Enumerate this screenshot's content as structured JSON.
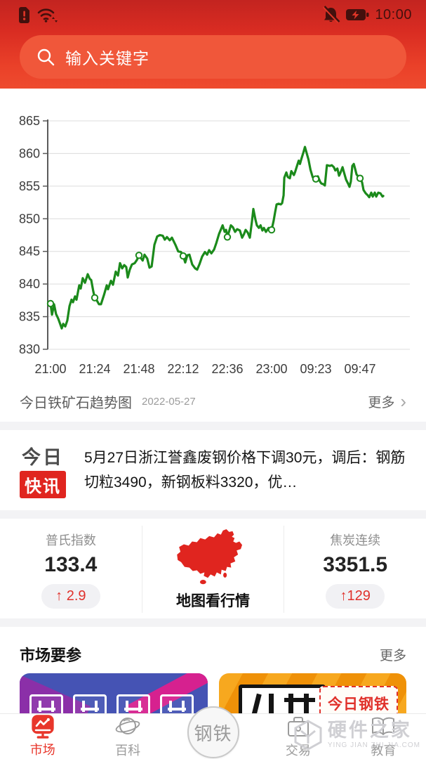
{
  "status_bar": {
    "time": "10:00",
    "left_icons": [
      "sim-alert-icon",
      "wifi-icon"
    ],
    "right_icons": [
      "notifications-muted-icon",
      "battery-charging-icon"
    ]
  },
  "search": {
    "placeholder": "输入关键字"
  },
  "chart_section": {
    "title": "今日铁矿石趋势图",
    "date": "2022-05-27",
    "more": "更多",
    "chevron": "›"
  },
  "chart_data": {
    "type": "line",
    "title": "今日铁矿石趋势图",
    "date": "2022-05-27",
    "ylim": [
      830,
      865
    ],
    "y_ticks": [
      865,
      860,
      855,
      850,
      845,
      840,
      835,
      830
    ],
    "x_ticks": [
      "21:00",
      "21:24",
      "21:48",
      "22:12",
      "22:36",
      "23:00",
      "09:23",
      "09:47"
    ],
    "tick_minutes": [
      0,
      24,
      48,
      72,
      96,
      120,
      144,
      168
    ],
    "line_color": "#1b8a1b",
    "grid": true,
    "points": [
      [
        0,
        837.0
      ],
      [
        0.8,
        835.3
      ],
      [
        1.9,
        836.9
      ],
      [
        3,
        835.4
      ],
      [
        4.2,
        834.7
      ],
      [
        6.1,
        833.2
      ],
      [
        6.9,
        833.9
      ],
      [
        8,
        833.5
      ],
      [
        9.1,
        834.4
      ],
      [
        10.3,
        836.6
      ],
      [
        11.4,
        837.6
      ],
      [
        12.2,
        837.2
      ],
      [
        13.3,
        838.1
      ],
      [
        14.1,
        837.6
      ],
      [
        15.6,
        839.8
      ],
      [
        16.4,
        839.3
      ],
      [
        17.5,
        840.9
      ],
      [
        18.7,
        840.2
      ],
      [
        20.2,
        841.5
      ],
      [
        21.3,
        840.8
      ],
      [
        22.1,
        840.6
      ],
      [
        23.2,
        838.9
      ],
      [
        24,
        837.9
      ],
      [
        25.1,
        837.5
      ],
      [
        26.3,
        836.9
      ],
      [
        27.4,
        836.9
      ],
      [
        29,
        838.3
      ],
      [
        30.5,
        839.8
      ],
      [
        31.2,
        839.2
      ],
      [
        32.8,
        840.5
      ],
      [
        33.9,
        839.9
      ],
      [
        35.4,
        841.9
      ],
      [
        36.6,
        841.3
      ],
      [
        37.7,
        843.2
      ],
      [
        38.9,
        842.4
      ],
      [
        40,
        842.9
      ],
      [
        41.1,
        842.6
      ],
      [
        41.9,
        841.0
      ],
      [
        43,
        842.2
      ],
      [
        44.2,
        843.0
      ],
      [
        45.7,
        843.2
      ],
      [
        46.9,
        843.7
      ],
      [
        48,
        844.4
      ],
      [
        50,
        843.6
      ],
      [
        51,
        844.5
      ],
      [
        52.5,
        843.9
      ],
      [
        53.7,
        842.5
      ],
      [
        54.9,
        842.7
      ],
      [
        56.4,
        846.0
      ],
      [
        57.9,
        847.3
      ],
      [
        59.4,
        847.5
      ],
      [
        60.9,
        847.4
      ],
      [
        62,
        846.8
      ],
      [
        63.2,
        847.2
      ],
      [
        64.7,
        846.7
      ],
      [
        65.9,
        847.1
      ],
      [
        67.8,
        846.0
      ],
      [
        69.3,
        845.0
      ],
      [
        70.8,
        844.9
      ],
      [
        72,
        844.3
      ],
      [
        73.1,
        843.3
      ],
      [
        74.3,
        844.4
      ],
      [
        75.4,
        844.5
      ],
      [
        76.9,
        843.0
      ],
      [
        78.5,
        842.4
      ],
      [
        79.6,
        842.2
      ],
      [
        80.8,
        843.0
      ],
      [
        82.3,
        844.2
      ],
      [
        83.8,
        844.9
      ],
      [
        85,
        844.5
      ],
      [
        86.1,
        845.2
      ],
      [
        87.3,
        844.7
      ],
      [
        88.8,
        845.3
      ],
      [
        90,
        846.3
      ],
      [
        91.5,
        847.7
      ],
      [
        93.4,
        849.0
      ],
      [
        94.5,
        848.0
      ],
      [
        95.3,
        848.3
      ],
      [
        96,
        847.2
      ],
      [
        97.9,
        849.0
      ],
      [
        99,
        848.7
      ],
      [
        100.2,
        848.0
      ],
      [
        101.3,
        848.4
      ],
      [
        102.8,
        848.2
      ],
      [
        104,
        847.1
      ],
      [
        105.1,
        847.7
      ],
      [
        105.9,
        848.3
      ],
      [
        107,
        847.9
      ],
      [
        108.2,
        847.1
      ],
      [
        109.3,
        849.5
      ],
      [
        110.1,
        851.5
      ],
      [
        111.2,
        849.9
      ],
      [
        112,
        849.0
      ],
      [
        113.1,
        848.6
      ],
      [
        114,
        849.0
      ],
      [
        115,
        848.2
      ],
      [
        115.8,
        848.6
      ],
      [
        116.9,
        848.0
      ],
      [
        118.4,
        848.6
      ],
      [
        120,
        848.3
      ],
      [
        121.1,
        849.7
      ],
      [
        121.9,
        851.0
      ],
      [
        122.7,
        852.2
      ],
      [
        123.8,
        852.3
      ],
      [
        125,
        852.2
      ],
      [
        125.7,
        852.4
      ],
      [
        126.5,
        853.6
      ],
      [
        126.9,
        856.3
      ],
      [
        128,
        857.1
      ],
      [
        128.8,
        856.4
      ],
      [
        129.9,
        856.2
      ],
      [
        130.7,
        857.3
      ],
      [
        132.1,
        856.7
      ],
      [
        132.8,
        857.2
      ],
      [
        133.9,
        858.2
      ],
      [
        134.7,
        858.9
      ],
      [
        135.4,
        858.4
      ],
      [
        136.2,
        859.2
      ],
      [
        137.3,
        860.2
      ],
      [
        138.1,
        861.0
      ],
      [
        139.2,
        859.9
      ],
      [
        140,
        859.1
      ],
      [
        141.1,
        857.5
      ],
      [
        142.3,
        856.4
      ],
      [
        143.4,
        855.9
      ],
      [
        144,
        856.1
      ],
      [
        145.1,
        856.5
      ],
      [
        146.3,
        855.7
      ],
      [
        147,
        855.4
      ],
      [
        148.1,
        855.3
      ],
      [
        148.9,
        855.1
      ],
      [
        150,
        858.2
      ],
      [
        151.6,
        858.1
      ],
      [
        152.7,
        858.2
      ],
      [
        153.8,
        857.9
      ],
      [
        154.6,
        857.4
      ],
      [
        155.7,
        857.7
      ],
      [
        156.6,
        856.6
      ],
      [
        157.3,
        857.0
      ],
      [
        158.5,
        857.9
      ],
      [
        159.2,
        857.2
      ],
      [
        160.4,
        856.0
      ],
      [
        161.5,
        855.4
      ],
      [
        162.3,
        854.9
      ],
      [
        163,
        855.7
      ],
      [
        163.8,
        858.1
      ],
      [
        164.6,
        858.4
      ],
      [
        165.3,
        857.7
      ],
      [
        166.1,
        856.8
      ],
      [
        167.2,
        856.4
      ],
      [
        168,
        856.2
      ],
      [
        169.1,
        855.6
      ],
      [
        169.9,
        854.4
      ],
      [
        171.1,
        853.9
      ],
      [
        172.2,
        853.6
      ],
      [
        173,
        853.3
      ],
      [
        174.1,
        854.0
      ],
      [
        174.9,
        853.4
      ],
      [
        176,
        854.0
      ],
      [
        176.8,
        853.4
      ],
      [
        177.9,
        854.0
      ],
      [
        179.1,
        853.9
      ],
      [
        180.2,
        853.4
      ],
      [
        180.6,
        853.5
      ]
    ],
    "markers": [
      [
        0,
        837.0
      ],
      [
        24,
        837.9
      ],
      [
        48,
        844.4
      ],
      [
        72,
        844.3
      ],
      [
        96,
        847.2
      ],
      [
        120,
        848.3
      ],
      [
        144,
        856.1
      ],
      [
        168,
        856.2
      ]
    ]
  },
  "news": {
    "badge_line1": "今日",
    "badge_line2": "快讯",
    "text": "5月27日浙江誉鑫废钢价格下调30元，调后：钢筋切粒3490，新钢板料3320，优…"
  },
  "stats": {
    "left": {
      "label": "普氏指数",
      "value": "133.4",
      "change": "↑ 2.9"
    },
    "center": {
      "caption": "地图看行情",
      "icon": "china-map-icon"
    },
    "right": {
      "label": "焦炭连续",
      "value": "3351.5",
      "change": "↑129"
    }
  },
  "market_section": {
    "title": "市场要参",
    "more": "更多",
    "card2_badge": "今日钢铁"
  },
  "nav": {
    "items": [
      {
        "id": "market",
        "label": "市场",
        "active": true
      },
      {
        "id": "wiki",
        "label": "百科",
        "active": false
      },
      {
        "id": "steel",
        "label": "钢铁",
        "active": false
      },
      {
        "id": "trade",
        "label": "交易",
        "active": false
      },
      {
        "id": "edu",
        "label": "教育",
        "active": false
      }
    ]
  },
  "watermark": {
    "title": "硬件之家",
    "subtitle": "YING JIAN ZHI JIA.COM"
  },
  "colors": {
    "accent_red": "#e0312b",
    "chart_green": "#1b8a1b",
    "header_top": "#c32420",
    "header_bottom": "#ee4b2e",
    "card_blue": "#4553b4",
    "card_orange": "#f7a81f"
  }
}
